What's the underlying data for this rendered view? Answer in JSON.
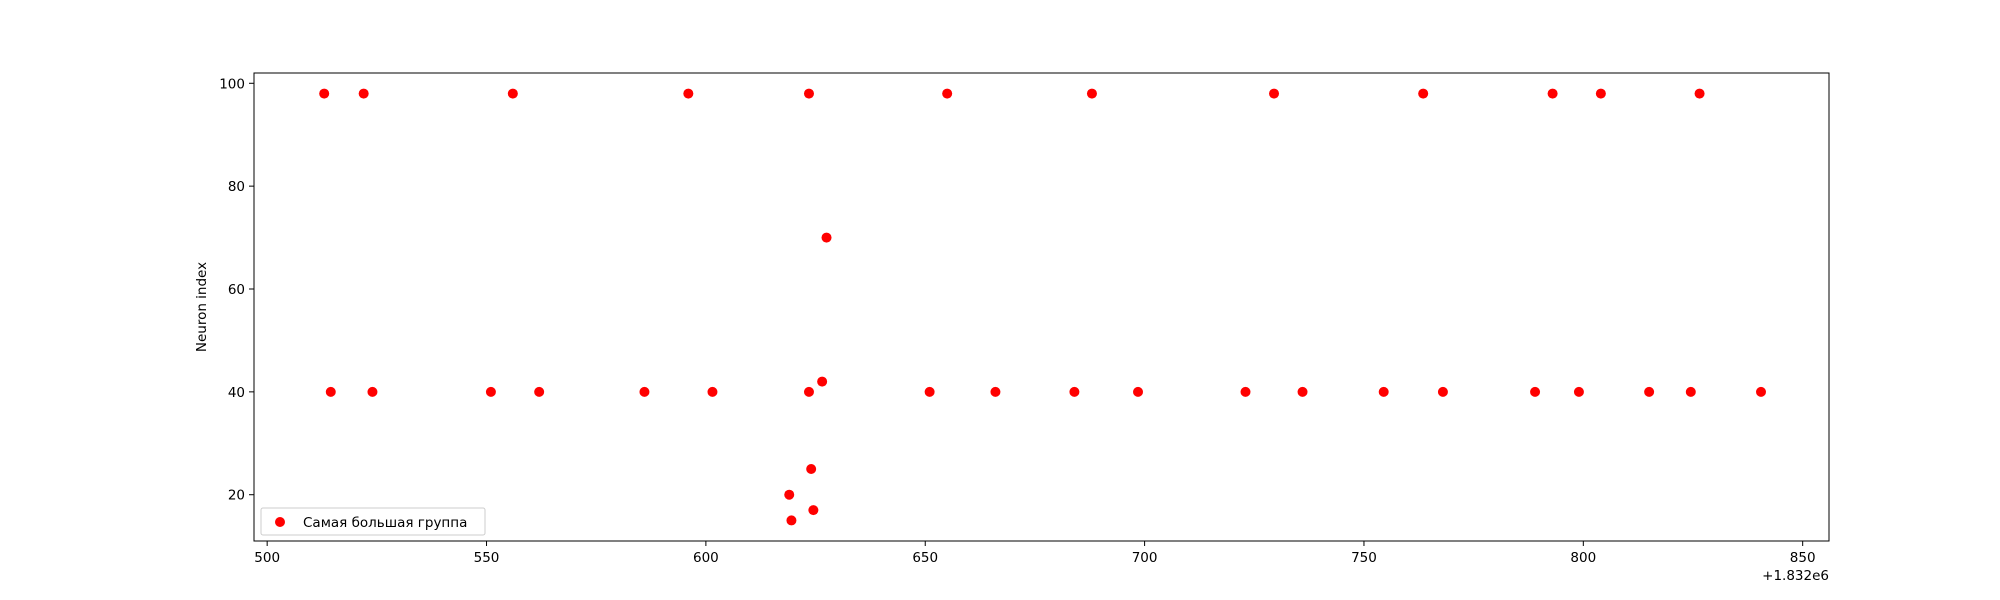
{
  "chart_data": {
    "type": "scatter",
    "title": "",
    "xlabel": "",
    "ylabel": "Neuron index",
    "x_offset_label": "+1.832e6",
    "xlim": [
      497,
      856
    ],
    "ylim": [
      11,
      102
    ],
    "xticks": [
      500,
      550,
      600,
      650,
      700,
      750,
      800,
      850
    ],
    "yticks": [
      20,
      40,
      60,
      80,
      100
    ],
    "grid": false,
    "legend_position": "lower left",
    "series": [
      {
        "name": "Самая большая группа",
        "color": "#ff0000",
        "x": [
          513,
          522,
          556,
          596,
          623.5,
          655,
          688,
          729.5,
          763.5,
          793,
          804,
          826.5,
          627.5,
          514.5,
          524,
          551,
          562,
          586,
          601.5,
          623.5,
          651,
          666,
          684,
          698.5,
          723,
          736,
          754.5,
          768,
          789,
          799,
          815,
          824.5,
          840.5,
          626.5,
          624,
          619,
          619.5,
          624.5
        ],
        "y": [
          98,
          98,
          98,
          98,
          98,
          98,
          98,
          98,
          98,
          98,
          98,
          98,
          70,
          40,
          40,
          40,
          40,
          40,
          40,
          40,
          40,
          40,
          40,
          40,
          40,
          40,
          40,
          40,
          40,
          40,
          40,
          40,
          40,
          42,
          25,
          20,
          15,
          17
        ]
      }
    ]
  }
}
